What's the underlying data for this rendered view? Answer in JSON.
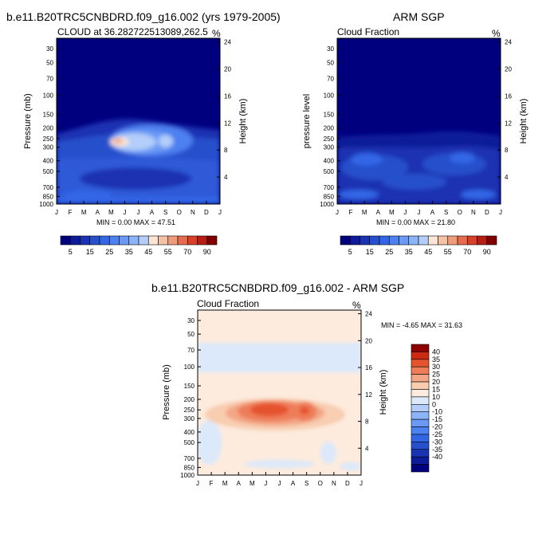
{
  "chart_data": [
    {
      "type": "heatmap",
      "title": "b.e11.B20TRC5CNBDRD.f09_g16.002 (yrs 1979-2005)",
      "left_string": "CLOUD at 36.282722513089,262.5",
      "right_string": "%",
      "ylabel": "Pressure (mb)",
      "ylabel_right": "Height (km)",
      "x_ticks": [
        "J",
        "F",
        "M",
        "A",
        "M",
        "J",
        "J",
        "A",
        "S",
        "O",
        "N",
        "D",
        "J"
      ],
      "y_ticks": [
        "30",
        "50",
        "70",
        "100",
        "150",
        "200",
        "250",
        "300",
        "400",
        "500",
        "700",
        "850",
        "1000"
      ],
      "y_ticks_right": [
        "24",
        "20",
        "16",
        "12",
        "8",
        "4"
      ],
      "y_scale": "log-pressure",
      "stats": "MIN =   0.00 MAX =  47.51",
      "min": 0.0,
      "max": 47.51,
      "colorbar": {
        "orientation": "horizontal",
        "tick_labels": [
          "5",
          "15",
          "25",
          "35",
          "45",
          "55",
          "70",
          "90"
        ],
        "levels": [
          5,
          10,
          15,
          20,
          25,
          30,
          35,
          40,
          45,
          50,
          55,
          60,
          70,
          80,
          90
        ]
      }
    },
    {
      "type": "heatmap",
      "title": "ARM SGP",
      "left_string": "Cloud Fraction",
      "right_string": "%",
      "ylabel": "pressure level",
      "ylabel_right": "Height (km)",
      "x_ticks": [
        "J",
        "F",
        "M",
        "A",
        "M",
        "J",
        "J",
        "A",
        "S",
        "O",
        "N",
        "D",
        "J"
      ],
      "y_ticks": [
        "30",
        "50",
        "70",
        "100",
        "150",
        "200",
        "250",
        "300",
        "400",
        "500",
        "700",
        "850",
        "1000"
      ],
      "y_ticks_right": [
        "24",
        "20",
        "16",
        "12",
        "8",
        "4"
      ],
      "y_scale": "log-pressure",
      "stats": "MIN =   0.00 MAX =  21.80",
      "min": 0.0,
      "max": 21.8,
      "colorbar": {
        "orientation": "horizontal",
        "tick_labels": [
          "5",
          "15",
          "25",
          "35",
          "45",
          "55",
          "70",
          "90"
        ],
        "levels": [
          5,
          10,
          15,
          20,
          25,
          30,
          35,
          40,
          45,
          50,
          55,
          60,
          70,
          80,
          90
        ]
      }
    },
    {
      "type": "heatmap",
      "title": "b.e11.B20TRC5CNBDRD.f09_g16.002 - ARM SGP",
      "left_string": "Cloud Fraction",
      "right_string": "%",
      "ylabel": "Pressure (mb)",
      "ylabel_right": "Height (km)",
      "x_ticks": [
        "J",
        "F",
        "M",
        "A",
        "M",
        "J",
        "J",
        "A",
        "S",
        "O",
        "N",
        "D",
        "J"
      ],
      "y_ticks": [
        "30",
        "50",
        "70",
        "100",
        "150",
        "200",
        "250",
        "300",
        "400",
        "500",
        "700",
        "850",
        "1000"
      ],
      "y_ticks_right": [
        "24",
        "20",
        "16",
        "12",
        "8",
        "4"
      ],
      "y_scale": "log-pressure",
      "stats": "MIN =  -4.65 MAX =  31.63",
      "min": -4.65,
      "max": 31.63,
      "colorbar": {
        "orientation": "vertical",
        "tick_labels": [
          "40",
          "35",
          "30",
          "25",
          "20",
          "15",
          "10",
          "0",
          "-10",
          "-15",
          "-20",
          "-25",
          "-30",
          "-35",
          "-40"
        ],
        "levels": [
          -40,
          -35,
          -30,
          -25,
          -20,
          -15,
          -10,
          -5,
          0,
          5,
          10,
          15,
          20,
          25,
          30,
          35,
          40
        ]
      }
    }
  ],
  "colors": {
    "seq": [
      "#00007f",
      "#0d1a99",
      "#1a33b3",
      "#2650cc",
      "#3366e6",
      "#4d80f0",
      "#6a9af5",
      "#8cb4f8",
      "#b3cefa",
      "#fbe6d6",
      "#f5c2a6",
      "#f09c7a",
      "#e86b4f",
      "#d94027",
      "#b81c12",
      "#800000"
    ],
    "div": [
      "#00007f",
      "#0d1a99",
      "#1a33b3",
      "#2650cc",
      "#3366e6",
      "#4d80f0",
      "#6a9af5",
      "#8cb4f8",
      "#b3cefa",
      "#dbe9fa",
      "#fdebde",
      "#f8cdb0",
      "#f3a685",
      "#ee7d5a",
      "#e5532f",
      "#cc2a12",
      "#8c0000"
    ]
  }
}
